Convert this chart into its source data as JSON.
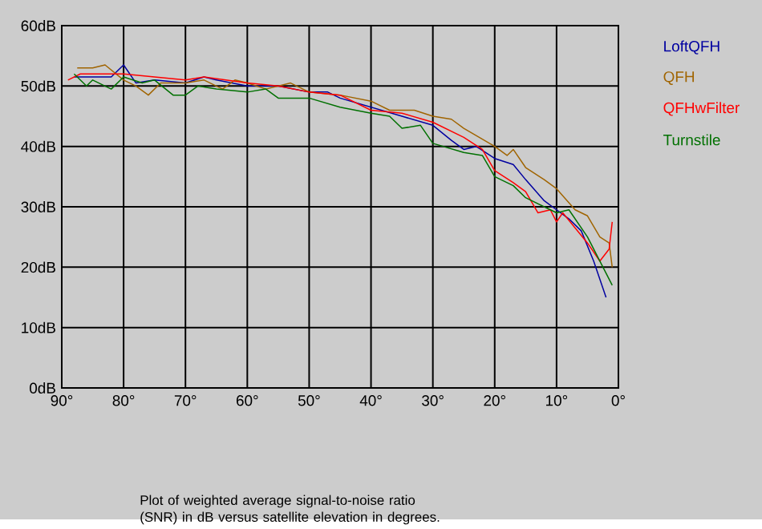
{
  "chart_data": {
    "type": "line",
    "xlim": [
      90,
      0
    ],
    "ylim": [
      0,
      60
    ],
    "xticks": [
      {
        "value": 90,
        "label": "90°"
      },
      {
        "value": 80,
        "label": "80°"
      },
      {
        "value": 70,
        "label": "70°"
      },
      {
        "value": 60,
        "label": "60°"
      },
      {
        "value": 50,
        "label": "50°"
      },
      {
        "value": 40,
        "label": "40°"
      },
      {
        "value": 30,
        "label": "30°"
      },
      {
        "value": 20,
        "label": "20°"
      },
      {
        "value": 10,
        "label": "10°"
      },
      {
        "value": 0,
        "label": "0°"
      }
    ],
    "yticks": [
      {
        "value": 0,
        "label": "0dB"
      },
      {
        "value": 10,
        "label": "10dB"
      },
      {
        "value": 20,
        "label": "20dB"
      },
      {
        "value": 30,
        "label": "30dB"
      },
      {
        "value": 40,
        "label": "40dB"
      },
      {
        "value": 50,
        "label": "50dB"
      },
      {
        "value": 60,
        "label": "60dB"
      }
    ],
    "grid": true,
    "legend": "right",
    "marker": "none",
    "line_style": "solid",
    "annotations": [
      "Plot of weighted average signal-to-noise ratio (SNR) in dB versus satellite elevation in degrees."
    ],
    "series": [
      {
        "name": "LoftQFH",
        "color": "#0000a0",
        "x": [
          88,
          85,
          82,
          80,
          78,
          75,
          70,
          67,
          65,
          60,
          55,
          50,
          47,
          45,
          40,
          35,
          30,
          27,
          25,
          23,
          20,
          17,
          15,
          12,
          10,
          8,
          6,
          4,
          2
        ],
        "values": [
          51.5,
          51.5,
          51.5,
          53.5,
          50.5,
          51,
          50.5,
          51.5,
          51,
          50,
          50,
          49,
          49,
          48,
          46.5,
          45,
          43.5,
          41,
          39.5,
          40,
          38,
          37,
          34.5,
          31,
          29.5,
          28,
          26,
          21,
          15
        ]
      },
      {
        "name": "QFH",
        "color": "#a06400",
        "x": [
          87.5,
          85,
          83,
          80,
          78,
          76,
          74,
          70,
          67,
          64,
          62,
          60,
          57,
          55,
          53,
          50,
          45,
          40,
          37,
          33,
          30,
          27,
          25,
          20,
          18,
          17,
          15,
          12,
          10,
          7,
          5,
          3,
          1.5,
          1
        ],
        "values": [
          53,
          53,
          53.5,
          51,
          50,
          48.5,
          50.5,
          50.5,
          51,
          49.5,
          51,
          50.5,
          49.5,
          50,
          50.5,
          49,
          48.5,
          47.5,
          46,
          46,
          45,
          44.5,
          43,
          40,
          38.5,
          39.5,
          36.5,
          34.5,
          33,
          29.5,
          28.5,
          25,
          24,
          20
        ]
      },
      {
        "name": "QFHwFilter",
        "color": "#ff0000",
        "x": [
          89,
          87,
          80,
          75,
          70,
          67,
          60,
          55,
          50,
          45,
          40,
          35,
          30,
          25,
          22,
          20,
          17,
          15,
          13,
          11,
          10,
          9,
          7,
          5,
          3,
          1.5,
          1
        ],
        "values": [
          51,
          52,
          52,
          51.5,
          51,
          51.5,
          50.5,
          50,
          49,
          48.5,
          46,
          45.5,
          44,
          41.5,
          39.5,
          36,
          34,
          32.5,
          29,
          29.5,
          27.5,
          29,
          26.5,
          24,
          21,
          23,
          27.5
        ]
      },
      {
        "name": "Turnstile",
        "color": "#007000",
        "x": [
          88,
          86,
          85,
          82,
          80,
          77,
          75,
          72,
          70,
          68,
          65,
          60,
          57,
          55,
          50,
          45,
          40,
          37,
          35,
          32,
          30,
          25,
          22,
          20,
          17,
          15,
          12,
          10,
          8,
          5,
          3,
          1
        ],
        "values": [
          52,
          50,
          51,
          49.5,
          51.5,
          50.5,
          51,
          48.5,
          48.5,
          50,
          49.5,
          49,
          49.5,
          48,
          48,
          46.5,
          45.5,
          45,
          43,
          43.5,
          40.5,
          39,
          38.5,
          35,
          33.5,
          31.5,
          30,
          29,
          29.5,
          25,
          21,
          17
        ]
      }
    ]
  }
}
